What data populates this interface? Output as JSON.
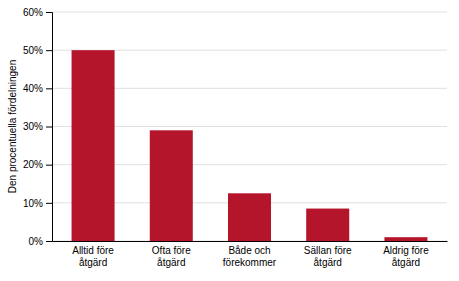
{
  "chart_data": {
    "type": "bar",
    "ylabel": "Den procentuella fördelningen",
    "categories": [
      "Alltid före\nåtgärd",
      "Ofta före\nåtgärd",
      "Både och\nförekommer",
      "Sällan före\nåtgärd",
      "Aldrig före\nåtgärd"
    ],
    "values": [
      50,
      29,
      12.5,
      8.5,
      1
    ],
    "color": "#b5152b",
    "ylim": [
      0,
      60
    ],
    "yticks": [
      {
        "value": 0,
        "label": "0%"
      },
      {
        "value": 10,
        "label": "10%"
      },
      {
        "value": 20,
        "label": "20%"
      },
      {
        "value": 30,
        "label": "30%"
      },
      {
        "value": 40,
        "label": "40%"
      },
      {
        "value": 50,
        "label": "50%"
      },
      {
        "value": 60,
        "label": "60%"
      }
    ],
    "grid": true
  }
}
